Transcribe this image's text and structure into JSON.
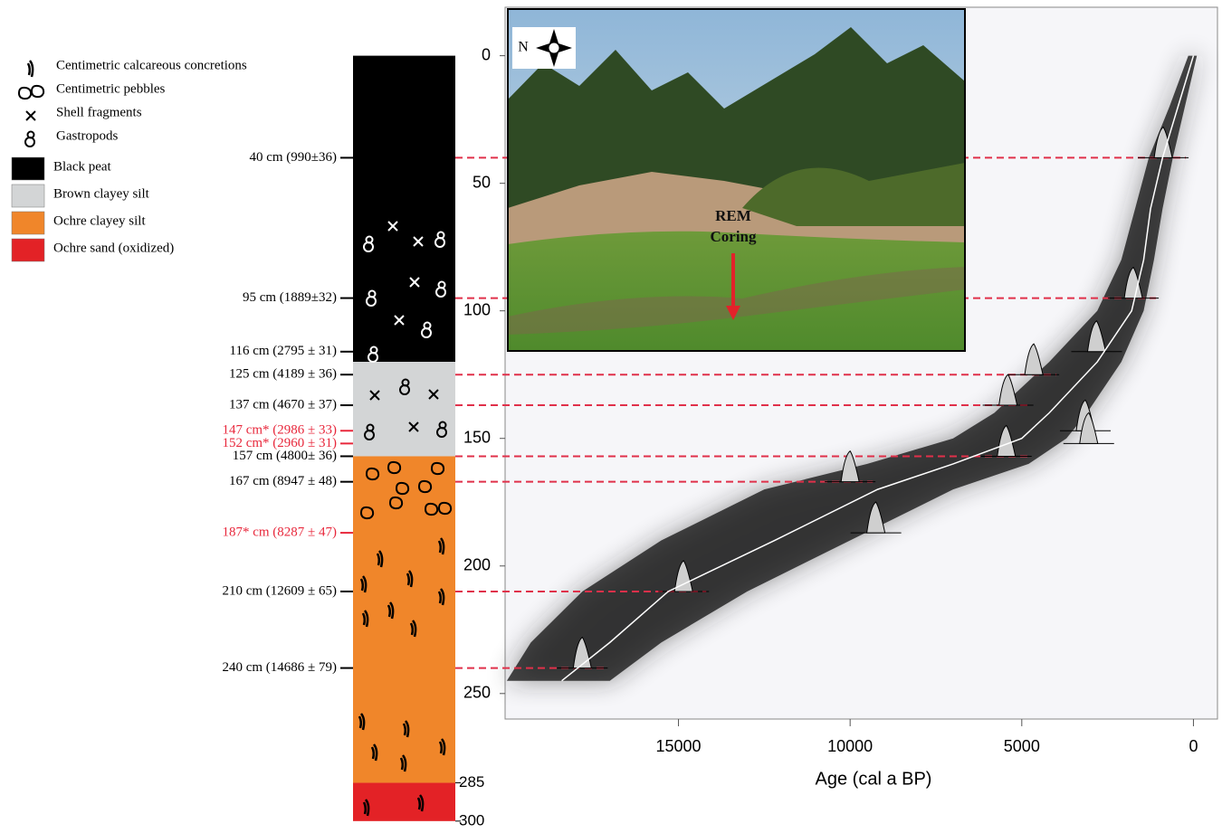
{
  "legend": {
    "symbols": [
      "Centimetric calcareous concretions",
      "Centimetric pebbles",
      "Shell fragments",
      "Gastropods"
    ],
    "lithology": [
      {
        "label": "Black peat",
        "color": "#000000"
      },
      {
        "label": "Brown clayey silt",
        "color": "#d3d5d6"
      },
      {
        "label": "Ochre clayey silt",
        "color": "#f0862a"
      },
      {
        "label": "Ochre sand (oxidized)",
        "color": "#e32226"
      }
    ]
  },
  "column": {
    "layers": [
      {
        "top": 0,
        "bottom": 120,
        "color": "#000000"
      },
      {
        "top": 120,
        "bottom": 157,
        "color": "#d3d5d6"
      },
      {
        "top": 157,
        "bottom": 285,
        "color": "#f0862a"
      },
      {
        "top": 285,
        "bottom": 300,
        "color": "#e32226"
      }
    ],
    "depth_ticks": [
      285,
      300
    ]
  },
  "dates": [
    {
      "label": "40 cm (990±36)",
      "depth": 40,
      "rejected": false,
      "line_to_chart": true,
      "calibrated_age": 880
    },
    {
      "label": "95 cm (1889±32)",
      "depth": 95,
      "rejected": false,
      "line_to_chart": true,
      "calibrated_age": 1750
    },
    {
      "label": "116 cm (2795 ± 31)",
      "depth": 116,
      "rejected": false,
      "line_to_chart": false,
      "calibrated_age": 2820
    },
    {
      "label": "125 cm (4189 ± 36)",
      "depth": 125,
      "rejected": false,
      "line_to_chart": true,
      "calibrated_age": 4650
    },
    {
      "label": "137 cm (4670 ± 37)",
      "depth": 137,
      "rejected": false,
      "line_to_chart": true,
      "calibrated_age": 5400
    },
    {
      "label": "147 cm* (2986 ± 33)",
      "depth": 147,
      "rejected": true,
      "line_to_chart": false,
      "calibrated_age": 3150
    },
    {
      "label": "152 cm* (2960 ± 31)",
      "depth": 152,
      "rejected": true,
      "line_to_chart": false,
      "calibrated_age": 3050
    },
    {
      "label": "157 cm (4800± 36)",
      "depth": 157,
      "rejected": false,
      "line_to_chart": true,
      "calibrated_age": 5450
    },
    {
      "label": "167 cm (8947 ± 48)",
      "depth": 167,
      "rejected": false,
      "line_to_chart": true,
      "calibrated_age": 10000
    },
    {
      "label": "187* cm (8287 ± 47)",
      "depth": 187,
      "rejected": true,
      "line_to_chart": false,
      "calibrated_age": 9250
    },
    {
      "label": "210 cm (12609 ± 65)",
      "depth": 210,
      "rejected": false,
      "line_to_chart": true,
      "calibrated_age": 14850
    },
    {
      "label": "240 cm (14686 ± 79)",
      "depth": 240,
      "rejected": false,
      "line_to_chart": true,
      "calibrated_age": 17800
    }
  ],
  "photo": {
    "label": [
      "REM",
      "Coring"
    ],
    "north": "N"
  },
  "chart_data": {
    "type": "line",
    "xlabel": "Age (cal a BP)",
    "xlim": [
      20050,
      -700
    ],
    "ylim": [
      -19,
      260
    ],
    "xticks": [
      15000,
      10000,
      5000,
      0
    ],
    "yticks": [
      0,
      50,
      100,
      150,
      200,
      250
    ],
    "model": {
      "x": [
        0,
        450,
        900,
        1250,
        1450,
        1800,
        2800,
        4200,
        5000,
        7000,
        9200,
        12200,
        15300,
        17000,
        18400
      ],
      "values": [
        0,
        20,
        40,
        60,
        80,
        100,
        120,
        140,
        150,
        160,
        170,
        190,
        210,
        230,
        245
      ],
      "color": "#ffffff"
    },
    "envelope": {
      "depth": [
        0,
        20,
        40,
        60,
        80,
        100,
        120,
        140,
        150,
        160,
        170,
        190,
        210,
        230,
        245
      ],
      "x_min": [
        -100,
        250,
        600,
        900,
        1150,
        1450,
        2100,
        3100,
        3700,
        4800,
        7000,
        10000,
        13000,
        15500,
        17000
      ],
      "x_max": [
        150,
        700,
        1300,
        1700,
        2100,
        2800,
        4200,
        5800,
        7000,
        9500,
        12500,
        15500,
        17800,
        19300,
        20000
      ],
      "color": "#1a1a1a"
    }
  }
}
